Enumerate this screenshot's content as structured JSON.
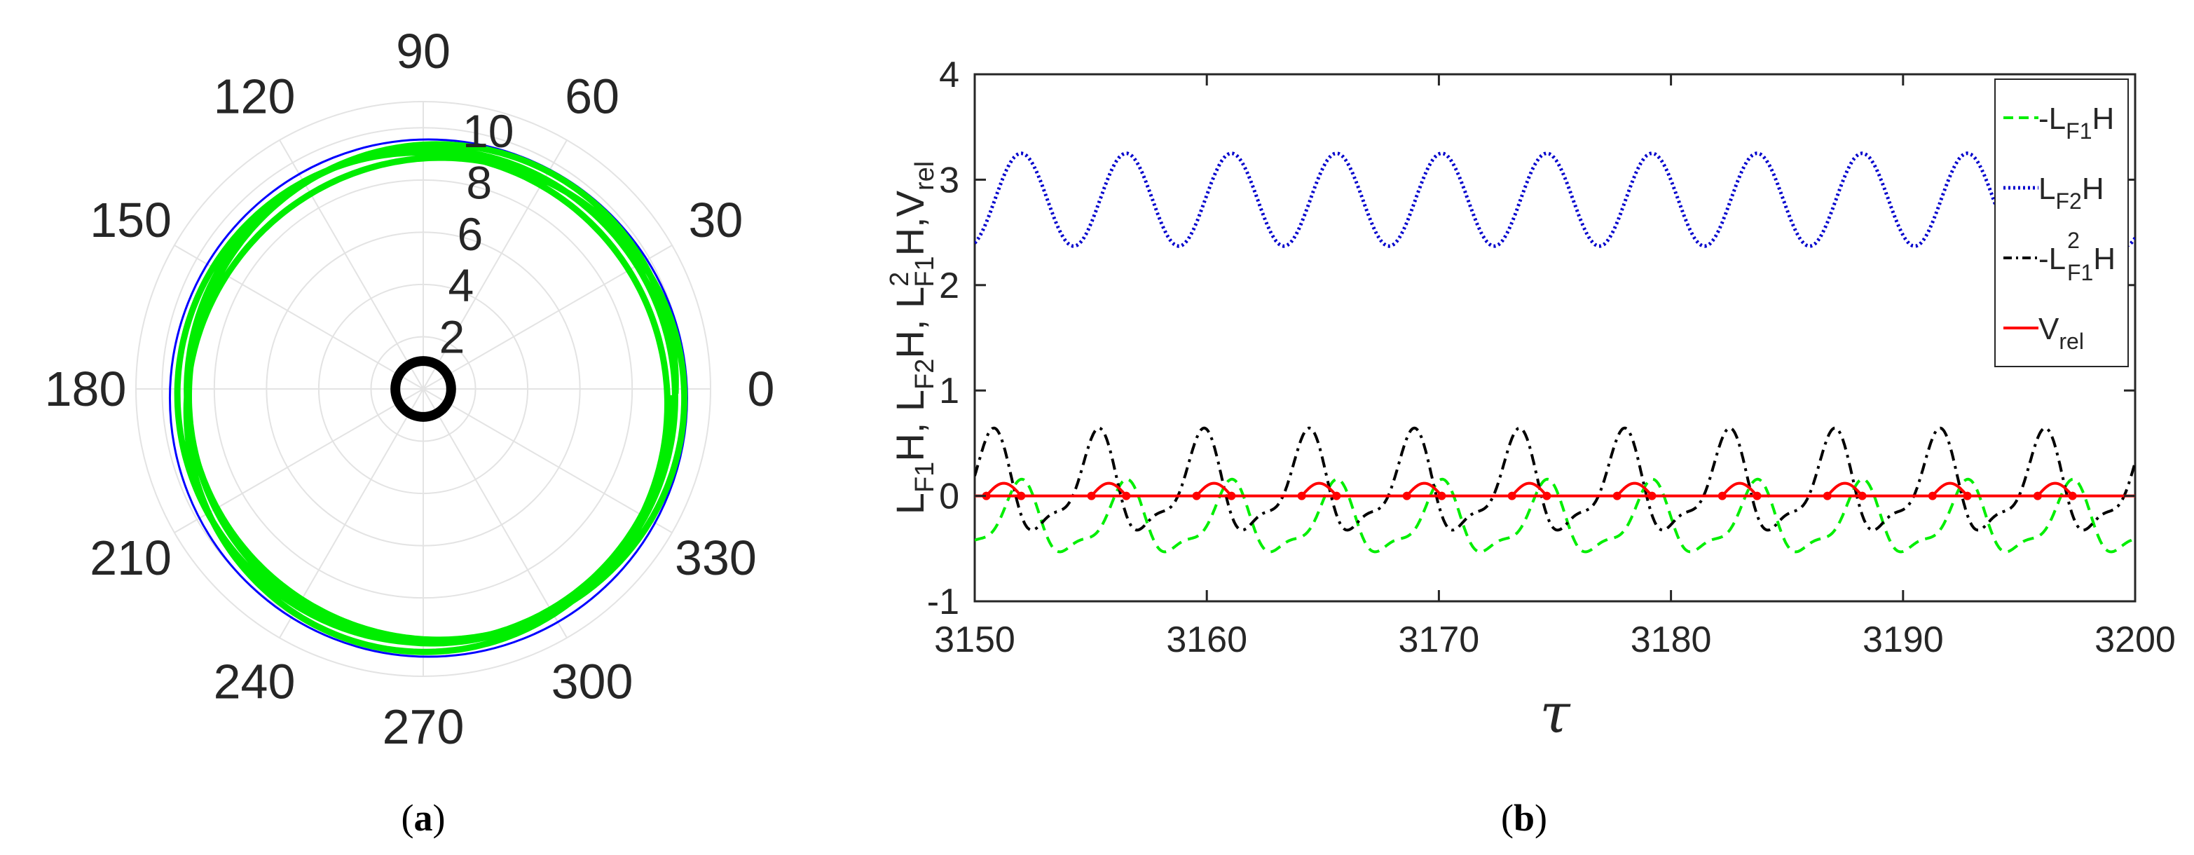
{
  "chart_data": [
    {
      "panel": "a",
      "type": "polar",
      "caption": "a",
      "angle_ticks_deg": [
        "0",
        "30",
        "60",
        "90",
        "120",
        "150",
        "180",
        "210",
        "240",
        "270",
        "300",
        "330"
      ],
      "radial_ticks": [
        "2",
        "4",
        "6",
        "8",
        "10"
      ],
      "rlim": [
        0,
        11
      ],
      "grid": true,
      "series": [
        {
          "name": "reference orbit",
          "color": "#0000ff",
          "style": "solid",
          "radius": 9.9,
          "center_offset": [
            0.2,
            -0.35
          ]
        },
        {
          "name": "trajectory",
          "color": "#00ee00",
          "style": "thick-solid",
          "radius_range": [
            9.0,
            9.8
          ],
          "turns": 4
        },
        {
          "name": "obstacle",
          "color": "#000000",
          "style": "thick-solid",
          "radius": 0.8
        }
      ]
    },
    {
      "panel": "b",
      "type": "line",
      "caption": "b",
      "xlabel": "τ",
      "ylabel": {
        "parts": [
          "L",
          "F1",
          "H, L",
          "F2",
          "H, L",
          "2",
          "F1",
          "H,V",
          "rel"
        ]
      },
      "xlim": [
        3150,
        3200
      ],
      "ylim": [
        -1,
        4
      ],
      "xticks": [
        "3150",
        "3160",
        "3170",
        "3180",
        "3190",
        "3200"
      ],
      "yticks": [
        "-1",
        "0",
        "1",
        "2",
        "3",
        "4"
      ],
      "legend_position": "top-right",
      "legend": [
        {
          "prefix": "-",
          "base": "L",
          "sub": "F1",
          "sup": "",
          "suffix": "H"
        },
        {
          "prefix": "",
          "base": "L",
          "sub": "F2",
          "sup": "",
          "suffix": "H"
        },
        {
          "prefix": "-",
          "base": "L",
          "sub": "F1",
          "sup": "2",
          "suffix": "H"
        },
        {
          "prefix": "",
          "base": "V",
          "sub": "rel",
          "sup": "",
          "suffix": ""
        }
      ],
      "period": 4.53,
      "series": [
        {
          "name": "L_F1 H",
          "color": "#00ee00",
          "style": "dashed",
          "mean": -0.25,
          "amplitude": 0.37,
          "phase_peak_at": 3151.9
        },
        {
          "name": "L_F2 H",
          "color": "#0000cc",
          "style": "dotted",
          "mean": 2.81,
          "amplitude": 0.44,
          "phase_peak_at": 3152.0
        },
        {
          "name": "L_F1^2 H",
          "color": "#000000",
          "style": "dash-dot",
          "mean": 0.07,
          "amplitude": 0.52,
          "phase_peak_at": 3150.7
        },
        {
          "name": "V_rel",
          "color": "#ff0000",
          "style": "solid-with-markers",
          "baseline": 0,
          "bump_height": 0.12,
          "bump_start_offset": 0.5,
          "bump_width": 1.5
        }
      ]
    }
  ]
}
